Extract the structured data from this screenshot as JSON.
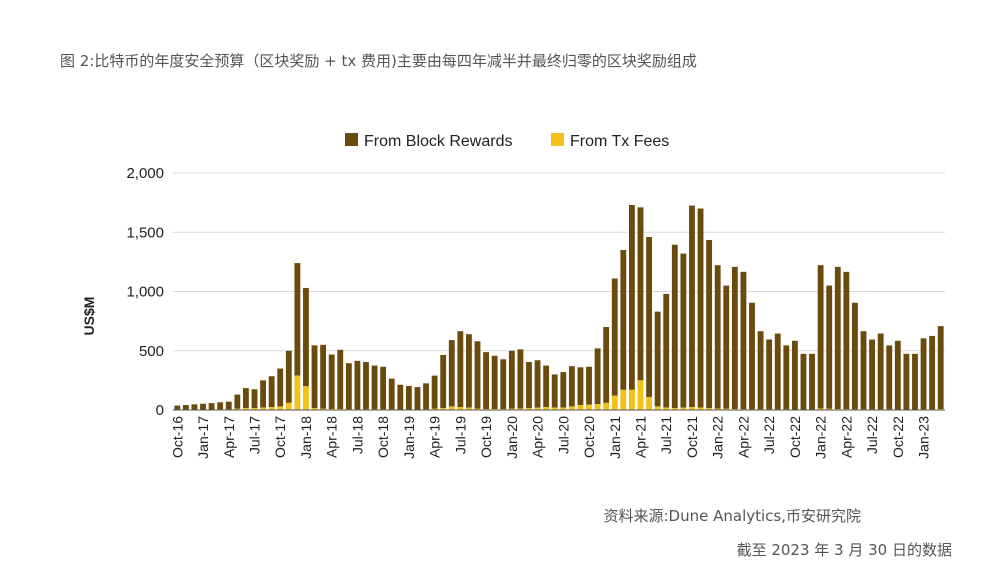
{
  "header": {
    "title": "图 2:比特币的年度安全预算（区块奖励 + tx 费用)主要由每四年减半并最终归零的区块奖励组成"
  },
  "footer": {
    "source": "资料来源:Dune Analytics,币安研究院",
    "date_note": "截至 2023 年 3 月 30 日的数据"
  },
  "colors": {
    "block_rewards": "#6B4A0E",
    "tx_fees": "#F2C218",
    "grid": "#d9d9d9",
    "axis_text": "#222222"
  },
  "chart_data": {
    "type": "bar",
    "stacked": true,
    "title": "",
    "xlabel": "",
    "ylabel": "US$M",
    "ylim": [
      0,
      2000
    ],
    "yticks": [
      0,
      500,
      1000,
      1500,
      2000
    ],
    "ytick_labels": [
      "0",
      "500",
      "1,000",
      "1,500",
      "2,000"
    ],
    "legend_position": "top",
    "categories": [
      "Oct-16",
      "Nov-16",
      "Dec-16",
      "Jan-17",
      "Feb-17",
      "Mar-17",
      "Apr-17",
      "May-17",
      "Jun-17",
      "Jul-17",
      "Aug-17",
      "Sep-17",
      "Oct-17",
      "Nov-17",
      "Dec-17",
      "Jan-18",
      "Feb-18",
      "Mar-18",
      "Apr-18",
      "May-18",
      "Jun-18",
      "Jul-18",
      "Aug-18",
      "Sep-18",
      "Oct-18",
      "Nov-18",
      "Dec-18",
      "Jan-19",
      "Feb-19",
      "Mar-19",
      "Apr-19",
      "May-19",
      "Jun-19",
      "Jul-19",
      "Aug-19",
      "Sep-19",
      "Oct-19",
      "Nov-19",
      "Dec-19",
      "Jan-20",
      "Feb-20",
      "Mar-20",
      "Apr-20",
      "May-20",
      "Jun-20",
      "Jul-20",
      "Aug-20",
      "Sep-20",
      "Oct-20",
      "Nov-20",
      "Dec-20",
      "Jan-21",
      "Feb-21",
      "Mar-21",
      "Apr-21",
      "May-21",
      "Jun-21",
      "Jul-21",
      "Aug-21",
      "Sep-21",
      "Oct-21",
      "Nov-21",
      "Dec-21",
      "Jan-22",
      "Feb-22",
      "Mar-22",
      "Apr-22",
      "May-22",
      "Jun-22",
      "Jul-22",
      "Aug-22",
      "Sep-22",
      "Oct-22",
      "Nov-22",
      "Dec-22",
      "Jan-22",
      "Feb-22",
      "Mar-22",
      "Apr-22",
      "May-22",
      "Jun-22",
      "Jul-22",
      "Aug-22",
      "Sep-22",
      "Oct-22",
      "Nov-22",
      "Dec-22",
      "Jan-23",
      "Feb-23",
      "Mar-23"
    ],
    "tick_labels": [
      "Oct-16",
      "",
      "",
      "Jan-17",
      "",
      "",
      "Apr-17",
      "",
      "",
      "Jul-17",
      "",
      "",
      "Oct-17",
      "",
      "",
      "Jan-18",
      "",
      "",
      "Apr-18",
      "",
      "",
      "Jul-18",
      "",
      "",
      "Oct-18",
      "",
      "",
      "Jan-19",
      "",
      "",
      "Apr-19",
      "",
      "",
      "Jul-19",
      "",
      "",
      "Oct-19",
      "",
      "",
      "Jan-20",
      "",
      "",
      "Apr-20",
      "",
      "",
      "Jul-20",
      "",
      "",
      "Oct-20",
      "",
      "",
      "Jan-21",
      "",
      "",
      "Apr-21",
      "",
      "",
      "Jul-21",
      "",
      "",
      "Oct-21",
      "",
      "",
      "Jan-22",
      "",
      "",
      "Apr-22",
      "",
      "",
      "Jul-22",
      "",
      "",
      "Oct-22",
      "",
      "",
      "Jan-22",
      "",
      "",
      "Apr-22",
      "",
      "",
      "Jul-22",
      "",
      "",
      "Oct-22",
      "",
      "",
      "Jan-23",
      "",
      ""
    ],
    "series": [
      {
        "name": "From Block Rewards",
        "values": [
          35,
          40,
          45,
          50,
          55,
          60,
          65,
          120,
          170,
          160,
          230,
          260,
          320,
          440,
          950,
          830,
          530,
          540,
          460,
          500,
          390,
          410,
          400,
          370,
          360,
          260,
          210,
          200,
          190,
          220,
          280,
          450,
          560,
          640,
          620,
          570,
          480,
          450,
          420,
          490,
          500,
          390,
          400,
          350,
          280,
          300,
          340,
          320,
          320,
          470,
          640,
          990,
          1180,
          1560,
          1460,
          1350,
          800,
          960,
          1380,
          1300,
          1700,
          1680,
          1420,
          1210,
          1040,
          1200,
          1160,
          900,
          660,
          590,
          640,
          540,
          580,
          470,
          470,
          1210,
          1040,
          1200,
          1160,
          900,
          660,
          590,
          640,
          540,
          580,
          470,
          470,
          600,
          620,
          700
        ]
      },
      {
        "name": "From Tx Fees",
        "values": [
          2,
          2,
          3,
          3,
          3,
          5,
          5,
          10,
          15,
          15,
          20,
          25,
          30,
          60,
          290,
          200,
          15,
          10,
          8,
          8,
          5,
          5,
          5,
          5,
          5,
          5,
          3,
          3,
          3,
          5,
          10,
          15,
          30,
          25,
          20,
          10,
          8,
          8,
          8,
          10,
          12,
          15,
          20,
          25,
          20,
          20,
          30,
          40,
          45,
          50,
          60,
          120,
          170,
          170,
          250,
          110,
          30,
          20,
          15,
          20,
          25,
          20,
          15,
          12,
          10,
          8,
          6,
          5,
          5,
          5,
          5,
          5,
          4,
          4,
          4,
          12,
          10,
          8,
          6,
          5,
          5,
          5,
          5,
          5,
          4,
          4,
          4,
          5,
          5,
          8
        ]
      }
    ]
  }
}
